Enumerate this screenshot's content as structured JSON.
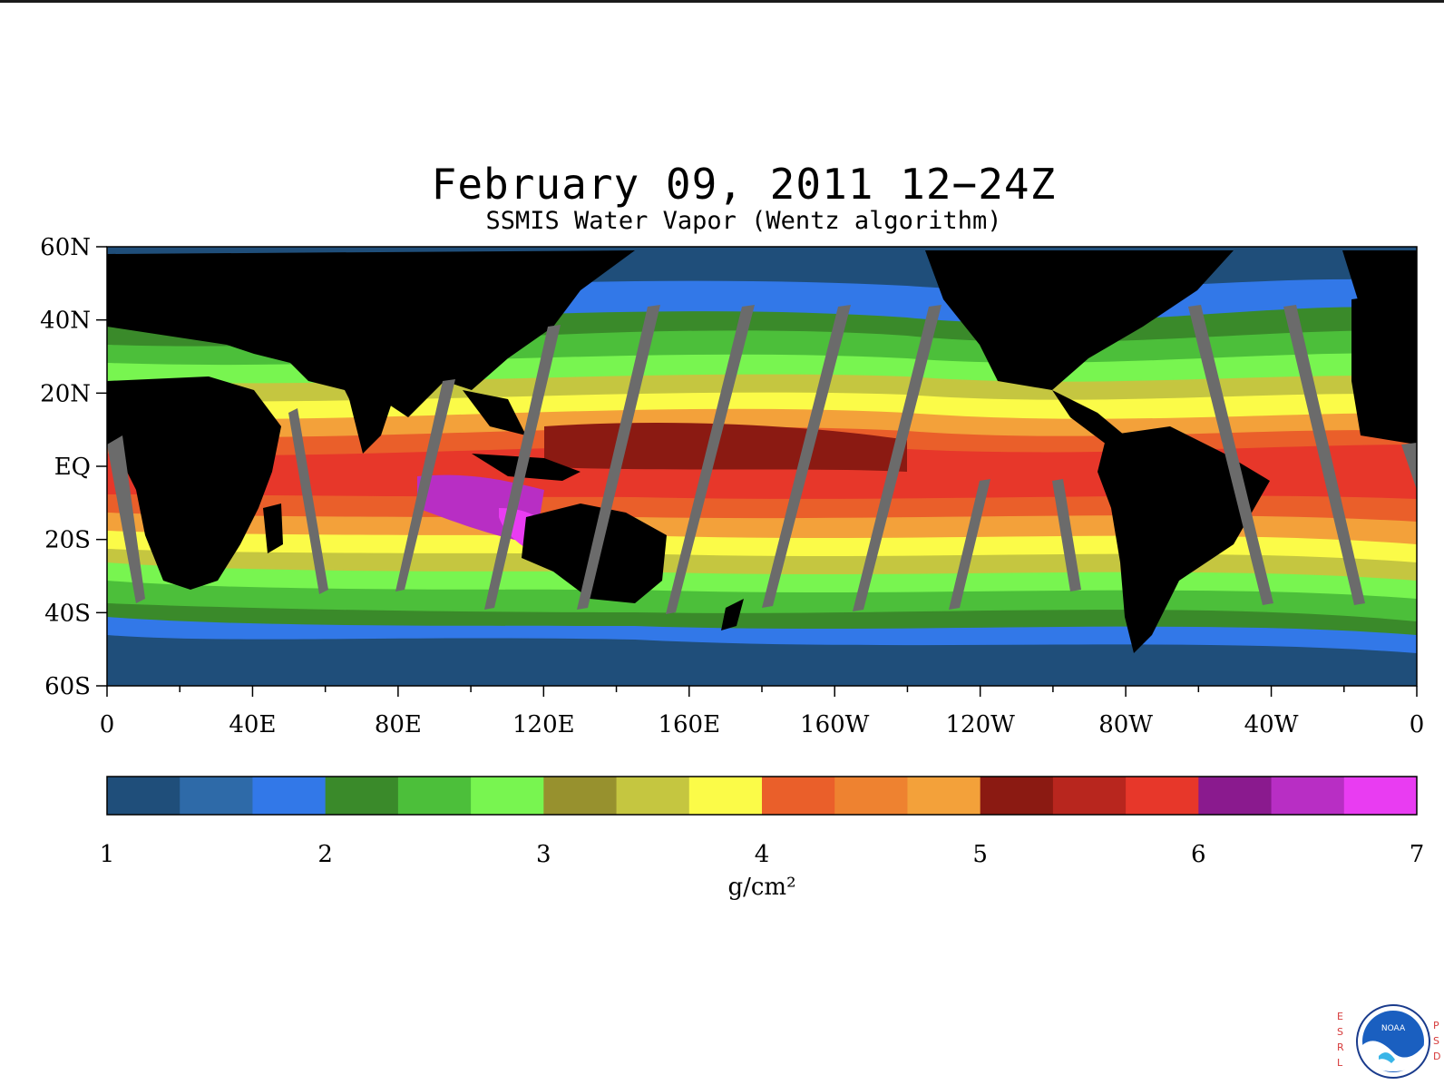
{
  "title": "February 09, 2011 12−24Z",
  "subtitle": "SSMIS Water Vapor (Wentz algorithm)",
  "map": {
    "lat_labels": [
      "60N",
      "40N",
      "20N",
      "EQ",
      "20S",
      "40S",
      "60S"
    ],
    "lat_values": [
      60,
      40,
      20,
      0,
      -20,
      -40,
      -60
    ],
    "lon_labels": [
      "0",
      "40E",
      "80E",
      "120E",
      "160E",
      "160W",
      "120W",
      "80W",
      "40W",
      "0"
    ],
    "lon_values": [
      0,
      40,
      80,
      120,
      160,
      200,
      240,
      280,
      320,
      360
    ],
    "lon_range": [
      0,
      360
    ],
    "lat_range": [
      -60,
      60
    ],
    "land_color": "#000000",
    "missing_swath_color": "#6b6b6b",
    "ocean_low_color": "#1f4e7a"
  },
  "colorbar": {
    "tick_labels": [
      "1",
      "2",
      "3",
      "4",
      "5",
      "6",
      "7"
    ],
    "unit_label": "g/cm²",
    "range": [
      1,
      7
    ],
    "colors": [
      "#1f4e7a",
      "#2e6aa8",
      "#3278e8",
      "#3a8a2a",
      "#4cbf3a",
      "#78f550",
      "#97912e",
      "#c5c640",
      "#fbfb48",
      "#ea5f2a",
      "#ee8230",
      "#f3a13a",
      "#8b1a12",
      "#b8261e",
      "#e7372a",
      "#8a1a8e",
      "#b82ec4",
      "#e93cf2"
    ]
  },
  "logo": {
    "left_letters": [
      "E",
      "S",
      "R",
      "L"
    ],
    "right_letters": [
      "P",
      "S",
      "D"
    ],
    "emblem_text": "NOAA"
  }
}
